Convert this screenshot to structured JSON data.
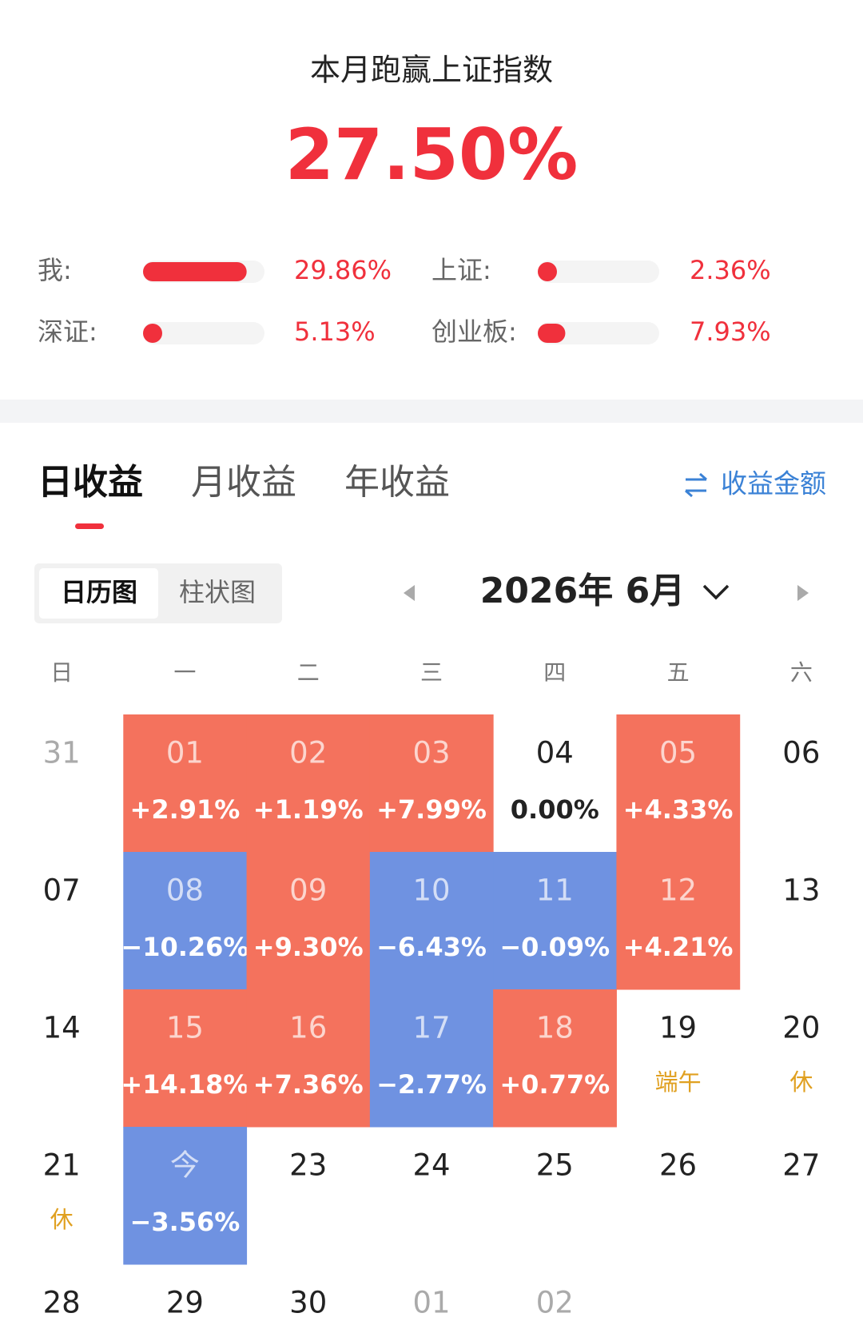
{
  "header": {
    "title": "本月跑赢上证指数",
    "excess_return": "27.50%"
  },
  "comparison": [
    {
      "label": "我:",
      "value": "29.86%"
    },
    {
      "label": "上证:",
      "value": "2.36%"
    },
    {
      "label": "深证:",
      "value": "5.13%"
    },
    {
      "label": "创业板:",
      "value": "7.93%"
    }
  ],
  "tabs": {
    "items": [
      "日收益",
      "月收益",
      "年收益"
    ],
    "active": 0,
    "toggle": "收益金额"
  },
  "view_switch": {
    "items": [
      "日历图",
      "柱状图"
    ],
    "active": 0
  },
  "calendar": {
    "month": "2026年 6月",
    "weekdays": [
      "日",
      "一",
      "二",
      "三",
      "四",
      "五",
      "六"
    ],
    "weeks": [
      [
        {
          "day": "31",
          "tone": "other"
        },
        {
          "day": "01",
          "change": "+2.91%",
          "tone": "up"
        },
        {
          "day": "02",
          "change": "+1.19%",
          "tone": "up"
        },
        {
          "day": "03",
          "change": "+7.99%",
          "tone": "up"
        },
        {
          "day": "04",
          "change": "0.00%",
          "tone": "flat"
        },
        {
          "day": "05",
          "change": "+4.33%",
          "tone": "up"
        },
        {
          "day": "06"
        }
      ],
      [
        {
          "day": "07"
        },
        {
          "day": "08",
          "change": "−10.26%",
          "tone": "down"
        },
        {
          "day": "09",
          "change": "+9.30%",
          "tone": "up"
        },
        {
          "day": "10",
          "change": "−6.43%",
          "tone": "down"
        },
        {
          "day": "11",
          "change": "−0.09%",
          "tone": "down"
        },
        {
          "day": "12",
          "change": "+4.21%",
          "tone": "up"
        },
        {
          "day": "13"
        }
      ],
      [
        {
          "day": "14"
        },
        {
          "day": "15",
          "change": "+14.18%",
          "tone": "up"
        },
        {
          "day": "16",
          "change": "+7.36%",
          "tone": "up"
        },
        {
          "day": "17",
          "change": "−2.77%",
          "tone": "down"
        },
        {
          "day": "18",
          "change": "+0.77%",
          "tone": "up"
        },
        {
          "day": "19",
          "note": "端午"
        },
        {
          "day": "20",
          "note": "休"
        }
      ],
      [
        {
          "day": "21",
          "note": "休"
        },
        {
          "day": "今",
          "change": "−3.56%",
          "tone": "down"
        },
        {
          "day": "23"
        },
        {
          "day": "24"
        },
        {
          "day": "25"
        },
        {
          "day": "26"
        },
        {
          "day": "27"
        }
      ],
      [
        {
          "day": "28"
        },
        {
          "day": "29"
        },
        {
          "day": "30"
        },
        {
          "day": "01",
          "tone": "other"
        },
        {
          "day": "02",
          "tone": "other"
        }
      ]
    ]
  }
}
